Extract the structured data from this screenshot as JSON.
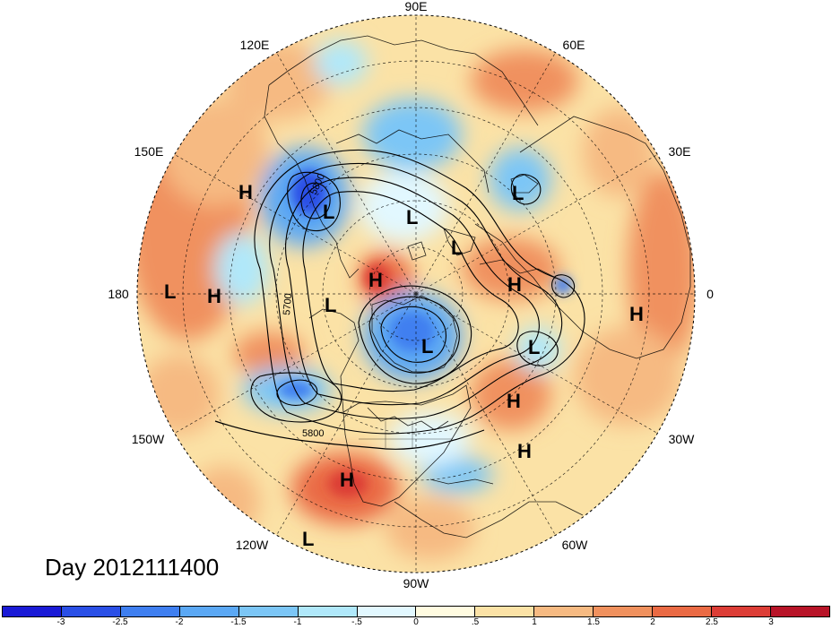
{
  "map": {
    "projection": "north-polar-stereographic",
    "longitude_labels": [
      "90E",
      "60E",
      "30E",
      "0",
      "30W",
      "60W",
      "90W",
      "120W",
      "150W",
      "180",
      "150E",
      "120E"
    ],
    "pressure_centers": [
      {
        "label": "H",
        "region": "east-siberia"
      },
      {
        "label": "L",
        "region": "sea-of-okhotsk"
      },
      {
        "label": "L",
        "region": "laptev-sea"
      },
      {
        "label": "L",
        "region": "kara-sea"
      },
      {
        "label": "L",
        "region": "caspian"
      },
      {
        "label": "H",
        "region": "scandinavia"
      },
      {
        "label": "H",
        "region": "chukchi-sea"
      },
      {
        "label": "L",
        "region": "bering-strait"
      },
      {
        "label": "H",
        "region": "north-pacific-west"
      },
      {
        "label": "L",
        "region": "north-pacific-far"
      },
      {
        "label": "H",
        "region": "sahara"
      },
      {
        "label": "L",
        "region": "canadian-arctic"
      },
      {
        "label": "L",
        "region": "north-atlantic"
      },
      {
        "label": "H",
        "region": "mid-atlantic"
      },
      {
        "label": "H",
        "region": "subtropical-atlantic"
      },
      {
        "label": "H",
        "region": "east-pacific"
      },
      {
        "label": "L",
        "region": "tropical-pacific"
      }
    ],
    "contour_labels": [
      "5800",
      "5700",
      "5800"
    ],
    "date_label": "Day 2012111400"
  },
  "colorbar": {
    "colors": [
      "#1a1ad6",
      "#2a4fe6",
      "#3f7ff0",
      "#5ba8f4",
      "#7cc6f6",
      "#b0e8fa",
      "#e2f8ff",
      "#fffbe0",
      "#fbe2a6",
      "#f6ba82",
      "#f0915e",
      "#ea6a44",
      "#dc3d36",
      "#b81428"
    ],
    "labels": [
      "-3",
      "-2.5",
      "-2",
      "-1.5",
      "-1",
      "-.5",
      "0",
      ".5",
      "1",
      "1.5",
      "2",
      "2.5",
      "3"
    ]
  }
}
